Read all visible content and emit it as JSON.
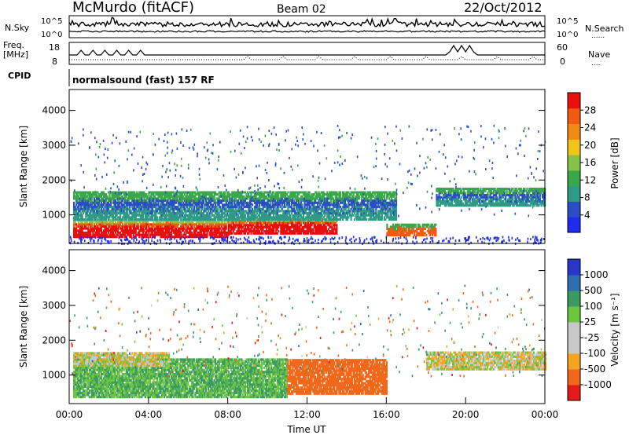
{
  "header": {
    "station": "McMurdo (fitACF)",
    "beam": "Beam 02",
    "date": "22/Oct/2012"
  },
  "side_labels": {
    "nsky": "N.Sky",
    "freq_line1": "Freq.",
    "freq_line2": "[MHz]",
    "cpid": "CPID",
    "nsearch": "N.Search",
    "nave": "Nave",
    "dots_short": "......",
    "dots_nave": "...."
  },
  "top_strip": {
    "noise_ticks_left": [
      "10^5",
      "10^0"
    ],
    "noise_ticks_right": [
      "10^5",
      "10^0"
    ],
    "freq_ticks": [
      "18",
      "8"
    ],
    "nave_ticks": [
      "60",
      "0"
    ],
    "cpid_text": "normalsound (fast) 157 RF"
  },
  "colors": {
    "power_scale": [
      "#1e2cf0",
      "#2a4fc4",
      "#2f9a86",
      "#3aa74a",
      "#86c24a",
      "#f0c418",
      "#f08a12",
      "#f25a10",
      "#e80f0f"
    ],
    "velocity_scale": [
      "#e41a1c",
      "#f2681b",
      "#f6a320",
      "#c8c8c8",
      "#c8c8c8",
      "#6ec640",
      "#3a9a62",
      "#2e6fb0",
      "#2a36c8"
    ]
  },
  "chart_data": [
    {
      "type": "heatmap",
      "panel": "power",
      "ylabel": "Slant Range [km]",
      "ylim": [
        180,
        4600
      ],
      "y_ticks": [
        "4000",
        "3000",
        "2000",
        "1000"
      ],
      "colorbar_label": "Power [dB]",
      "colorbar_ticks": [
        "28",
        "24",
        "20",
        "16",
        "12",
        "8",
        "4"
      ],
      "colorbar_range": [
        0,
        32
      ],
      "x_ticks": [
        "00:00",
        "04:00",
        "08:00",
        "12:00",
        "16:00",
        "20:00",
        "00:00"
      ],
      "xlim_hours": [
        0,
        24
      ],
      "rows": [
        {
          "t0": 0.2,
          "t1": 8.0,
          "r0": 400,
          "r1": 900,
          "level": "strong"
        },
        {
          "t0": 8.0,
          "t1": 13.5,
          "r0": 500,
          "r1": 950,
          "level": "strong"
        },
        {
          "t0": 16.0,
          "t1": 18.5,
          "r0": 450,
          "r1": 800,
          "level": "medium"
        },
        {
          "t0": 0.2,
          "t1": 16.5,
          "r0": 900,
          "r1": 1700,
          "level": "weak"
        },
        {
          "t0": 18.5,
          "t1": 24.0,
          "r0": 1300,
          "r1": 1800,
          "level": "weak"
        }
      ]
    },
    {
      "type": "heatmap",
      "panel": "velocity",
      "ylabel": "Slant Range [km]",
      "ylim": [
        180,
        4600
      ],
      "y_ticks": [
        "4000",
        "3000",
        "2000",
        "1000"
      ],
      "colorbar_label": "Velocity [m s^-1]",
      "colorbar_ticks": [
        "1000",
        "500",
        "100",
        "25",
        "-25",
        "-100",
        "-500",
        "-1000"
      ],
      "colorbar_range": [
        -1000,
        1000
      ],
      "x_ticks": [
        "00:00",
        "04:00",
        "08:00",
        "12:00",
        "16:00",
        "20:00",
        "00:00"
      ],
      "xlim_hours": [
        0,
        24
      ],
      "xlabel": "Time UT",
      "regions": [
        {
          "t0": 0.2,
          "t1": 11.0,
          "r0": 400,
          "r1": 1500,
          "velocity": 100
        },
        {
          "t0": 11.0,
          "t1": 16.0,
          "r0": 500,
          "r1": 1500,
          "velocity": -300
        },
        {
          "t0": 0.2,
          "t1": 5.0,
          "r0": 1300,
          "r1": 1700,
          "velocity": 0
        },
        {
          "t0": 18.0,
          "t1": 24.0,
          "r0": 1200,
          "r1": 1700,
          "velocity": 0
        }
      ]
    }
  ]
}
